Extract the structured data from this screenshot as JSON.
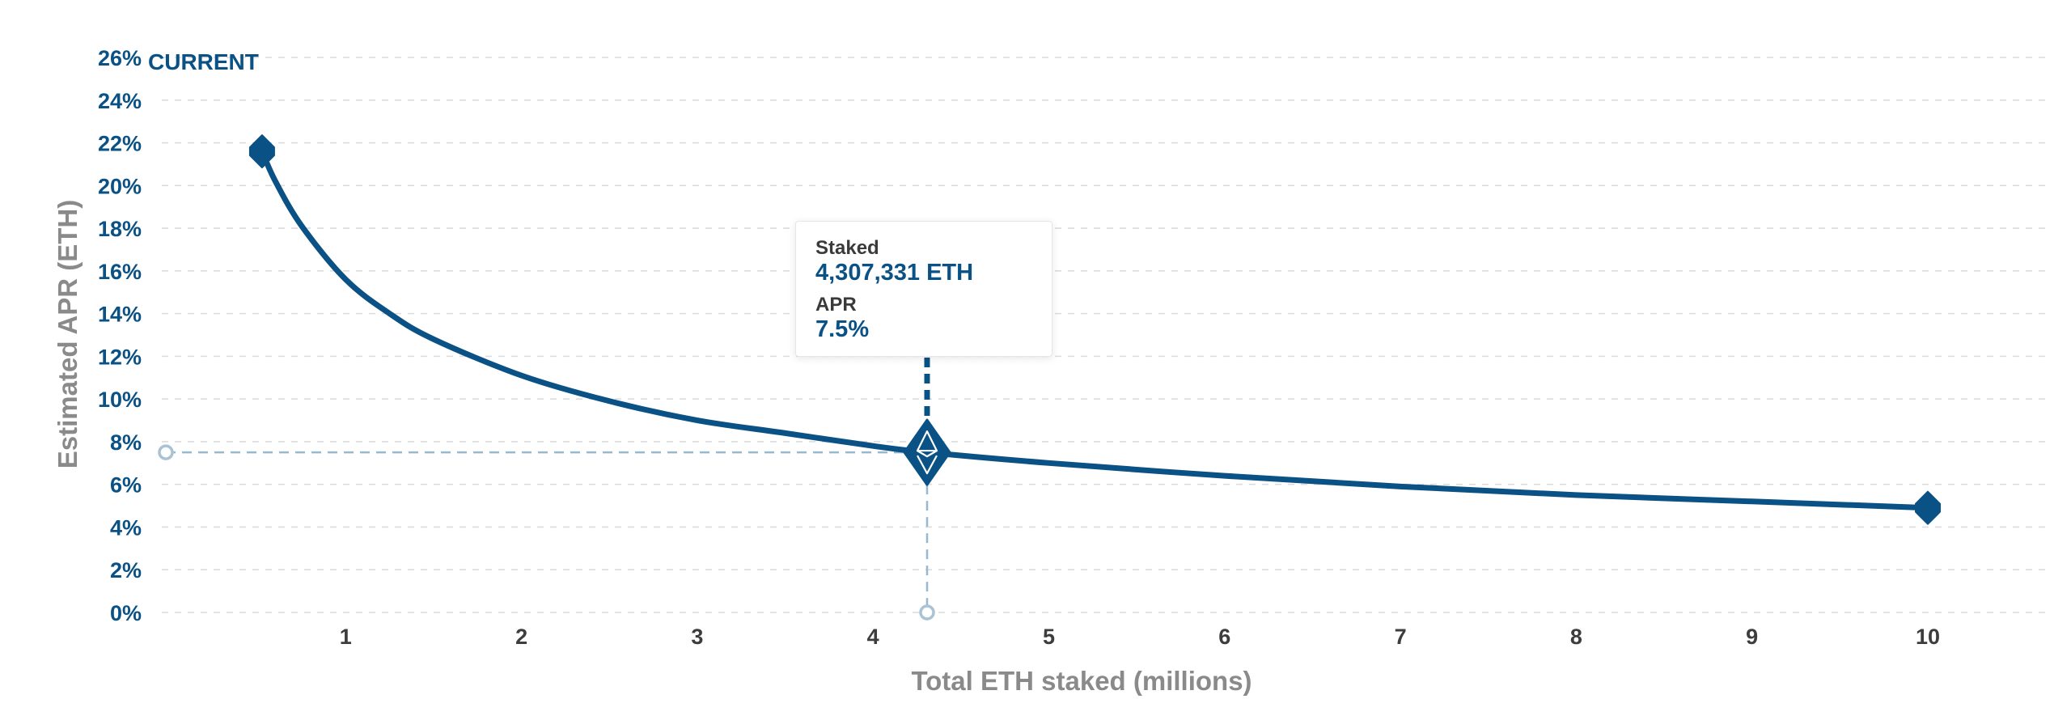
{
  "colors": {
    "line": "#0a5185",
    "tick_text": "#0a5185",
    "x_tick_text": "#3d3d3d",
    "axis_title": "#8a8a8a",
    "grid": "#dcdcdc",
    "guide": "#97b9cf",
    "guide_marker": "#a9c2d4"
  },
  "chart_data": {
    "type": "line",
    "xlabel": "Total ETH staked (millions)",
    "ylabel": "Estimated APR (ETH)",
    "x_ticks": [
      1,
      2,
      3,
      4,
      5,
      6,
      7,
      8,
      9,
      10
    ],
    "y_ticks": [
      "0%",
      "2%",
      "4%",
      "6%",
      "8%",
      "10%",
      "12%",
      "14%",
      "16%",
      "18%",
      "20%",
      "22%",
      "24%",
      "26%"
    ],
    "xlim": [
      0,
      10.8
    ],
    "ylim": [
      0,
      26
    ],
    "grid": true,
    "series": [
      {
        "x": [
          0.524288,
          0.6,
          0.75,
          1,
          1.25,
          1.5,
          2,
          2.5,
          3,
          3.5,
          4,
          4.307331,
          5,
          6,
          7,
          8,
          9,
          10
        ],
        "y": [
          21.6,
          20.2,
          18.1,
          15.6,
          14.0,
          12.8,
          11.1,
          9.9,
          9.0,
          8.4,
          7.8,
          7.5,
          7.0,
          6.4,
          5.9,
          5.5,
          5.2,
          4.9
        ]
      }
    ],
    "annotation": "CURRENT",
    "current_point": {
      "x": 4.307331,
      "y": 7.5
    }
  },
  "tooltip": {
    "staked_label": "Staked",
    "staked_value": "4,307,331 ETH",
    "apr_label": "APR",
    "apr_value": "7.5%"
  }
}
